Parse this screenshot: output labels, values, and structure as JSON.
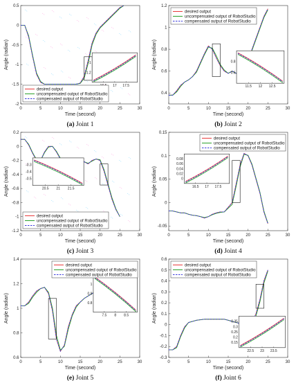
{
  "chart_data": [
    {
      "type": "line",
      "caption_label": "(a)",
      "caption_text": "Joint 1",
      "xlabel": "Time (second)",
      "ylabel": "Angle (radian)",
      "xlim": [
        0,
        30
      ],
      "ylim": [
        -2,
        0.5
      ],
      "xticks": [
        0,
        5,
        10,
        15,
        20,
        25,
        30
      ],
      "yticks": [
        -2,
        -1.5,
        -1,
        -0.5,
        0,
        0.5
      ],
      "legend_position": "bottom-left",
      "legend": [
        "desired output",
        "uncompensated output of RobotStudio",
        "compensated output of RobotStudio"
      ],
      "x": [
        0,
        1,
        2,
        3,
        4,
        5,
        6,
        7,
        8,
        9,
        10,
        11,
        12,
        13,
        14,
        15,
        16,
        17,
        18,
        19,
        20,
        21,
        22,
        23,
        24,
        25,
        26
      ],
      "series": [
        {
          "values": [
            0,
            0,
            -0.3,
            -0.8,
            -1.25,
            -1.45,
            -1.5,
            -1.5,
            -1.5,
            -1.5,
            -1.5,
            -1.5,
            -1.5,
            -1.5,
            -1.5,
            -1.47,
            -1.3,
            -0.9,
            -0.45,
            -0.2,
            -0.05,
            0.05,
            0.15,
            0.25,
            0.35,
            0.45,
            0.5
          ]
        },
        {
          "values": [
            0,
            0,
            -0.27,
            -0.77,
            -1.22,
            -1.43,
            -1.5,
            -1.5,
            -1.5,
            -1.5,
            -1.5,
            -1.5,
            -1.5,
            -1.5,
            -1.5,
            -1.48,
            -1.35,
            -0.97,
            -0.5,
            -0.23,
            -0.07,
            0.03,
            0.13,
            0.23,
            0.33,
            0.43,
            0.5
          ]
        },
        {
          "values": [
            0,
            0,
            -0.3,
            -0.8,
            -1.25,
            -1.45,
            -1.5,
            -1.5,
            -1.5,
            -1.5,
            -1.5,
            -1.5,
            -1.5,
            -1.5,
            -1.5,
            -1.47,
            -1.3,
            -0.9,
            -0.45,
            -0.2,
            -0.05,
            0.05,
            0.15,
            0.25,
            0.35,
            0.45,
            0.5
          ]
        }
      ],
      "zoom": {
        "xlim": [
          16,
          18
        ],
        "ylim": [
          -1.4,
          -0.8
        ],
        "xticks": [
          "16.5",
          "17",
          "17.5"
        ],
        "yticks": [
          "-1",
          "-1.2"
        ]
      }
    },
    {
      "type": "line",
      "caption_label": "(b)",
      "caption_text": "Joint 2",
      "xlabel": "Time (second)",
      "ylabel": "Angle (radian)",
      "xlim": [
        0,
        30
      ],
      "ylim": [
        0.3,
        1.2
      ],
      "xticks": [
        0,
        5,
        10,
        15,
        20,
        25,
        30
      ],
      "yticks": [
        0.4,
        0.6,
        0.8,
        1,
        1.2
      ],
      "legend_position": "top-left",
      "legend": [
        "desired output",
        "uncompensated output of RobotStudio",
        "compensated output of RobotStudio"
      ],
      "x": [
        0,
        1,
        2,
        3,
        4,
        5,
        6,
        7,
        8,
        9,
        10,
        11,
        12,
        13,
        14,
        15,
        16,
        17,
        18,
        19,
        20,
        21,
        22,
        23,
        24,
        25
      ],
      "series": [
        {
          "values": [
            0.38,
            0.38,
            0.42,
            0.47,
            0.5,
            0.52,
            0.55,
            0.6,
            0.68,
            0.76,
            0.83,
            0.8,
            0.72,
            0.65,
            0.6,
            0.58,
            0.6,
            0.58,
            0.55,
            0.6,
            0.68,
            0.8,
            0.9,
            1.0,
            1.1,
            1.17
          ]
        },
        {
          "values": [
            0.38,
            0.38,
            0.41,
            0.46,
            0.5,
            0.52,
            0.55,
            0.59,
            0.67,
            0.75,
            0.82,
            0.81,
            0.74,
            0.66,
            0.61,
            0.58,
            0.6,
            0.58,
            0.56,
            0.59,
            0.67,
            0.79,
            0.89,
            0.99,
            1.09,
            1.16
          ]
        },
        {
          "values": [
            0.38,
            0.38,
            0.42,
            0.47,
            0.5,
            0.52,
            0.55,
            0.6,
            0.68,
            0.76,
            0.83,
            0.8,
            0.72,
            0.65,
            0.6,
            0.58,
            0.6,
            0.58,
            0.55,
            0.6,
            0.68,
            0.8,
            0.9,
            1.0,
            1.1,
            1.17
          ]
        }
      ],
      "zoom": {
        "xlim": [
          11,
          13
        ],
        "ylim": [
          0.55,
          0.85
        ],
        "xticks": [
          "11.5",
          "12",
          "12.5"
        ],
        "yticks": [
          "0.8",
          "0.6"
        ]
      }
    },
    {
      "type": "line",
      "caption_label": "(c)",
      "caption_text": "Joint 3",
      "xlabel": "Time (second)",
      "ylabel": "Angle (radian)",
      "xlim": [
        0,
        30
      ],
      "ylim": [
        -1.2,
        0.2
      ],
      "xticks": [
        0,
        5,
        10,
        15,
        20,
        25,
        30
      ],
      "yticks": [
        -1.2,
        -1,
        -0.8,
        -0.6,
        -0.4,
        -0.2,
        0,
        0.2
      ],
      "legend_position": "bottom-left",
      "legend": [
        "desired output",
        "uncompensated output of RobotStudio",
        "compensated output of RobotStudio"
      ],
      "x": [
        0,
        1,
        2,
        3,
        4,
        5,
        6,
        7,
        8,
        9,
        10,
        11,
        12,
        13,
        14,
        15,
        16,
        17,
        18,
        19,
        20,
        21,
        22,
        23,
        24,
        25
      ],
      "series": [
        {
          "values": [
            0.1,
            0.1,
            0.02,
            -0.1,
            -0.2,
            -0.2,
            -0.08,
            0,
            0,
            -0.08,
            -0.18,
            -0.2,
            -0.2,
            -0.2,
            -0.2,
            -0.2,
            -0.22,
            -0.25,
            -0.2,
            -0.18,
            -0.2,
            -0.35,
            -0.55,
            -0.75,
            -0.9,
            -1.0
          ]
        },
        {
          "values": [
            0.1,
            0.1,
            0.03,
            -0.09,
            -0.19,
            -0.2,
            -0.09,
            -0.01,
            0,
            -0.07,
            -0.17,
            -0.2,
            -0.2,
            -0.2,
            -0.2,
            -0.2,
            -0.22,
            -0.24,
            -0.21,
            -0.18,
            -0.19,
            -0.33,
            -0.53,
            -0.73,
            -0.89,
            -1.0
          ]
        },
        {
          "values": [
            0.1,
            0.1,
            0.02,
            -0.1,
            -0.2,
            -0.2,
            -0.08,
            0,
            0,
            -0.08,
            -0.18,
            -0.2,
            -0.2,
            -0.2,
            -0.2,
            -0.2,
            -0.22,
            -0.25,
            -0.2,
            -0.18,
            -0.2,
            -0.35,
            -0.55,
            -0.75,
            -0.9,
            -1.0
          ]
        }
      ],
      "zoom": {
        "xlim": [
          20,
          22
        ],
        "ylim": [
          -0.55,
          -0.25
        ],
        "xticks": [
          "20.5",
          "21",
          "21.5"
        ],
        "yticks": [
          "-0.3",
          "-0.4",
          "-0.5"
        ]
      }
    },
    {
      "type": "line",
      "caption_label": "(d)",
      "caption_text": "Joint 4",
      "xlabel": "Time (second)",
      "ylabel": "Angle (radian)",
      "xlim": [
        0,
        30
      ],
      "ylim": [
        -0.06,
        0.15
      ],
      "xticks": [
        0,
        5,
        10,
        15,
        20,
        25,
        30
      ],
      "yticks": [
        -0.05,
        0,
        0.05,
        0.1,
        0.15
      ],
      "legend_position": "top-right",
      "legend": [
        "desired output",
        "uncompensated output of RobotStudio",
        "compensated output of RobotStudio"
      ],
      "x": [
        0,
        1,
        2,
        3,
        4,
        5,
        6,
        7,
        8,
        9,
        10,
        11,
        12,
        13,
        14,
        15,
        16,
        17,
        18,
        19,
        20,
        21,
        22,
        23,
        24,
        25
      ],
      "series": [
        {
          "values": [
            -0.018,
            -0.018,
            -0.02,
            -0.022,
            -0.022,
            -0.025,
            -0.027,
            -0.028,
            -0.03,
            -0.033,
            -0.03,
            -0.025,
            -0.022,
            -0.02,
            -0.02,
            -0.01,
            0.0,
            0.04,
            0.08,
            0.105,
            0.1,
            0.08,
            0.05,
            0.02,
            -0.02,
            -0.045
          ]
        },
        {
          "values": [
            -0.018,
            -0.018,
            -0.02,
            -0.022,
            -0.022,
            -0.025,
            -0.027,
            -0.028,
            -0.03,
            -0.032,
            -0.03,
            -0.026,
            -0.023,
            -0.021,
            -0.02,
            -0.012,
            -0.004,
            0.035,
            0.076,
            0.103,
            0.101,
            0.082,
            0.052,
            0.022,
            -0.018,
            -0.044
          ]
        },
        {
          "values": [
            -0.018,
            -0.018,
            -0.02,
            -0.022,
            -0.022,
            -0.025,
            -0.027,
            -0.028,
            -0.03,
            -0.033,
            -0.03,
            -0.025,
            -0.022,
            -0.02,
            -0.02,
            -0.01,
            0.0,
            0.04,
            0.08,
            0.105,
            0.1,
            0.08,
            0.05,
            0.02,
            -0.02,
            -0.045
          ]
        }
      ],
      "zoom": {
        "xlim": [
          16,
          18
        ],
        "ylim": [
          0,
          0.09
        ],
        "xticks": [
          "16.5",
          "17",
          "17.5"
        ],
        "yticks": [
          "0.08",
          "0.06",
          "0.04",
          "0.02",
          "0"
        ]
      }
    },
    {
      "type": "line",
      "caption_label": "(e)",
      "caption_text": "Joint 5",
      "xlabel": "Time (second)",
      "ylabel": "Angle (radian)",
      "xlim": [
        0,
        30
      ],
      "ylim": [
        0.6,
        1.4
      ],
      "xticks": [
        0,
        5,
        10,
        15,
        20,
        25,
        30
      ],
      "yticks": [
        0.6,
        0.8,
        1,
        1.2,
        1.4
      ],
      "legend_position": "top-right",
      "legend": [
        "desired output",
        "uncompensated output of RobotStudio",
        "compensated output of RobotStudio"
      ],
      "x": [
        0,
        1,
        2,
        3,
        4,
        5,
        6,
        7,
        8,
        9,
        10,
        11,
        12,
        13,
        14,
        15,
        16,
        17,
        18,
        19,
        20,
        21,
        22,
        23,
        24,
        25
      ],
      "series": [
        {
          "values": [
            1.02,
            1.02,
            1.05,
            1.1,
            1.14,
            1.16,
            1.17,
            1.12,
            0.98,
            0.75,
            0.65,
            0.7,
            0.85,
            0.95,
            1.02,
            1.05,
            1.08,
            1.1,
            1.12,
            1.14,
            1.17,
            1.2,
            1.24,
            1.28,
            1.32,
            1.36
          ]
        },
        {
          "values": [
            1.02,
            1.02,
            1.04,
            1.09,
            1.13,
            1.16,
            1.17,
            1.13,
            1.0,
            0.78,
            0.66,
            0.69,
            0.83,
            0.94,
            1.01,
            1.05,
            1.08,
            1.1,
            1.12,
            1.14,
            1.17,
            1.2,
            1.24,
            1.28,
            1.32,
            1.36
          ]
        },
        {
          "values": [
            1.02,
            1.02,
            1.05,
            1.1,
            1.14,
            1.16,
            1.17,
            1.12,
            0.98,
            0.75,
            0.65,
            0.7,
            0.85,
            0.95,
            1.02,
            1.05,
            1.08,
            1.1,
            1.12,
            1.14,
            1.17,
            1.2,
            1.24,
            1.28,
            1.32,
            1.36
          ]
        }
      ],
      "zoom": {
        "xlim": [
          7,
          9
        ],
        "ylim": [
          0.75,
          1.08
        ],
        "xticks": [
          "7.5",
          "8",
          "8.5"
        ],
        "yticks": [
          "1",
          "0.9",
          "0.8"
        ]
      }
    },
    {
      "type": "line",
      "caption_label": "(f)",
      "caption_text": "Joint 6",
      "xlabel": "Time (second)",
      "ylabel": "Angle (radian)",
      "xlim": [
        0,
        30
      ],
      "ylim": [
        -0.3,
        0.6
      ],
      "xticks": [
        0,
        5,
        10,
        15,
        20,
        25,
        30
      ],
      "yticks": [
        -0.3,
        -0.2,
        -0.1,
        0,
        0.1,
        0.2,
        0.3,
        0.4,
        0.5,
        0.6
      ],
      "legend_position": "top-left",
      "legend": [
        "desired output",
        "uncompensated output of RobotStudio",
        "compensated output of RobotStudio"
      ],
      "x": [
        0,
        1,
        2,
        3,
        4,
        5,
        6,
        7,
        8,
        9,
        10,
        11,
        12,
        13,
        14,
        15,
        16,
        17,
        18,
        19,
        20,
        21,
        22,
        23,
        24,
        25
      ],
      "series": [
        {
          "values": [
            -0.23,
            -0.23,
            -0.2,
            -0.1,
            -0.02,
            0.02,
            0.03,
            0.04,
            0.045,
            0.05,
            0.05,
            0.05,
            0.05,
            0.05,
            0.05,
            0.04,
            0.03,
            0.02,
            0.01,
            0.0,
            0.0,
            0.02,
            0.1,
            0.23,
            0.4,
            0.5
          ]
        },
        {
          "values": [
            -0.23,
            -0.23,
            -0.21,
            -0.11,
            -0.03,
            0.02,
            0.03,
            0.04,
            0.045,
            0.05,
            0.05,
            0.05,
            0.05,
            0.05,
            0.05,
            0.04,
            0.03,
            0.02,
            0.01,
            0.0,
            -0.005,
            0.01,
            0.08,
            0.21,
            0.38,
            0.49
          ]
        },
        {
          "values": [
            -0.23,
            -0.23,
            -0.2,
            -0.1,
            -0.02,
            0.02,
            0.03,
            0.04,
            0.045,
            0.05,
            0.05,
            0.05,
            0.05,
            0.05,
            0.05,
            0.04,
            0.03,
            0.02,
            0.01,
            0.0,
            0.0,
            0.02,
            0.1,
            0.23,
            0.4,
            0.5
          ]
        }
      ],
      "zoom": {
        "xlim": [
          22,
          24
        ],
        "ylim": [
          0.15,
          0.37
        ],
        "xticks": [
          "22.5",
          "23",
          "23.5"
        ],
        "yticks": [
          "0.35",
          "0.3",
          "0.25",
          "0.2",
          "0.15"
        ]
      }
    }
  ],
  "colors": {
    "desired": "#e8393a",
    "uncompensated": "#2aa02a",
    "compensated": "#3a3adc"
  }
}
